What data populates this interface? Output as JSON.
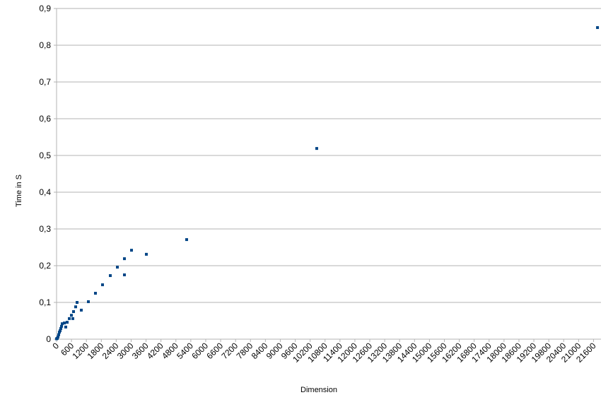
{
  "chart_data": {
    "type": "scatter",
    "x_label": "Dimension",
    "y_label": "Time in S",
    "series": [
      {
        "color": "#004586",
        "x": [
          0,
          28,
          57,
          85,
          114,
          142,
          171,
          199,
          228,
          313,
          370,
          427,
          512,
          597,
          654,
          683,
          768,
          825,
          995,
          1280,
          1564,
          1849,
          2162,
          2446,
          2730,
          2730,
          3015,
          3612,
          5233,
          10466,
          21760
        ],
        "values": [
          0.001,
          0.002,
          0.006,
          0.012,
          0.019,
          0.023,
          0.029,
          0.035,
          0.042,
          0.044,
          0.033,
          0.046,
          0.056,
          0.065,
          0.056,
          0.075,
          0.088,
          0.1,
          0.079,
          0.102,
          0.125,
          0.148,
          0.173,
          0.196,
          0.219,
          0.175,
          0.242,
          0.231,
          0.271,
          0.519,
          0.848
        ]
      }
    ],
    "xlim": [
      0,
      21900
    ],
    "xticks": [
      0,
      600,
      1200,
      1800,
      2400,
      3000,
      3600,
      4200,
      4800,
      5400,
      6000,
      6600,
      7200,
      7800,
      8400,
      9000,
      9600,
      10200,
      10800,
      11400,
      12000,
      12600,
      13200,
      13800,
      14400,
      15000,
      15600,
      16200,
      16800,
      17400,
      18000,
      18600,
      19200,
      19800,
      20400,
      21000,
      21600
    ],
    "ylim": [
      0,
      0.9
    ],
    "yticks": [
      0,
      {
        "value": 0.1,
        "label": "0,1"
      },
      {
        "value": 0.2,
        "label": "0,2"
      },
      {
        "value": 0.3,
        "label": "0,3"
      },
      {
        "value": 0.4,
        "label": "0,4"
      },
      {
        "value": 0.5,
        "label": "0,5"
      },
      {
        "value": 0.6,
        "label": "0,6"
      },
      {
        "value": 0.7,
        "label": "0,7"
      },
      {
        "value": 0.8,
        "label": "0,8"
      },
      {
        "value": 0.9,
        "label": "0,9"
      }
    ],
    "grid": true
  }
}
